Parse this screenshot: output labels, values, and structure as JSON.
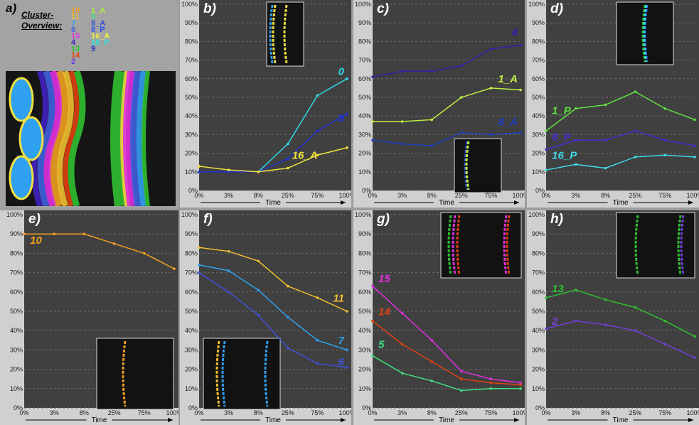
{
  "overview": {
    "letter": "a)",
    "title": "Cluster-\nOverview:",
    "clusters": [
      {
        "label": "10",
        "color": "#f0a020"
      },
      {
        "label": "11",
        "color": "#f0c030"
      },
      {
        "label": "7",
        "color": "#30a0f0"
      },
      {
        "label": "6",
        "color": "#4060e0"
      },
      {
        "label": "15",
        "color": "#e030e0"
      },
      {
        "label": "4",
        "color": "#4020c0"
      },
      {
        "label": "13",
        "color": "#30c030"
      },
      {
        "label": "14",
        "color": "#e04010"
      },
      {
        "label": "2",
        "color": "#6040e0"
      },
      {
        "label": "1_A",
        "color": "#b0f040"
      },
      {
        "label": "5",
        "color": "#40e080"
      },
      {
        "label": "8_A",
        "color": "#3050d0"
      },
      {
        "label": "8_P",
        "color": "#3050f0"
      },
      {
        "label": "16_A",
        "color": "#f0f040"
      },
      {
        "label": "16_P",
        "color": "#30e0e0"
      },
      {
        "label": "9",
        "color": "#2030c0"
      }
    ]
  },
  "axis": {
    "xlabel": "Time"
  },
  "chart_data": [
    {
      "panel": "b",
      "letter": "b)",
      "type": "line",
      "x": [
        "0%",
        "3%",
        "8%",
        "25%",
        "75%",
        "100%"
      ],
      "yticks": [
        "0%",
        "10%",
        "20%",
        "30%",
        "40%",
        "50%",
        "60%",
        "70%",
        "80%",
        "90%",
        "100%"
      ],
      "xlabel": "Time",
      "ylim": [
        0,
        100
      ],
      "series": [
        {
          "name": "0",
          "color": "#30d8e8",
          "values": [
            10,
            10,
            10,
            25,
            51,
            60
          ],
          "label_pos": [
            100,
            62
          ]
        },
        {
          "name": "9",
          "color": "#2030d0",
          "values": [
            10,
            10,
            10,
            17,
            32,
            41
          ],
          "label_pos": [
            100,
            37
          ]
        },
        {
          "name": "16_A",
          "color": "#f0e040",
          "values": [
            13,
            11,
            10,
            12,
            19,
            23
          ],
          "label_pos": [
            82,
            17
          ]
        }
      ]
    },
    {
      "panel": "c",
      "letter": "c)",
      "type": "line",
      "x": [
        "0%",
        "3%",
        "8%",
        "25%",
        "75%",
        "100%"
      ],
      "yticks": [
        "0%",
        "10%",
        "20%",
        "30%",
        "40%",
        "50%",
        "60%",
        "70%",
        "80%",
        "90%",
        "100%"
      ],
      "xlabel": "Time",
      "ylim": [
        0,
        100
      ],
      "series": [
        {
          "name": "4",
          "color": "#3020b0",
          "values": [
            61,
            64,
            64,
            67,
            76,
            78
          ],
          "label_pos": [
            100,
            83
          ]
        },
        {
          "name": "1_A",
          "color": "#c0f040",
          "values": [
            37,
            37,
            38,
            50,
            55,
            54
          ],
          "label_pos": [
            100,
            58
          ]
        },
        {
          "name": "8_A",
          "color": "#2040c0",
          "values": [
            27,
            25,
            24,
            31,
            30,
            31
          ],
          "label_pos": [
            100,
            35
          ]
        }
      ]
    },
    {
      "panel": "d",
      "letter": "d)",
      "type": "line",
      "x": [
        "0%",
        "3%",
        "8%",
        "25%",
        "75%",
        "100%"
      ],
      "yticks": [
        "0%",
        "10%",
        "20%",
        "30%",
        "40%",
        "50%",
        "60%",
        "70%",
        "80%",
        "90%",
        "100%"
      ],
      "xlabel": "Time",
      "ylim": [
        0,
        100
      ],
      "series": [
        {
          "name": "1_P",
          "color": "#60e040",
          "values": [
            32,
            44,
            46,
            53,
            44,
            38
          ],
          "label_pos": [
            2,
            41
          ]
        },
        {
          "name": "8_P",
          "color": "#4030d0",
          "values": [
            22,
            27,
            27,
            32,
            27,
            24
          ],
          "label_pos": [
            2,
            27
          ]
        },
        {
          "name": "16_P",
          "color": "#40d8e8",
          "values": [
            11,
            14,
            12,
            18,
            19,
            18
          ],
          "label_pos": [
            2,
            17
          ]
        }
      ]
    },
    {
      "panel": "e",
      "letter": "e)",
      "type": "line",
      "x": [
        "0%",
        "3%",
        "8%",
        "25%",
        "75%",
        "100%"
      ],
      "yticks": [
        "0%",
        "10%",
        "20%",
        "30%",
        "40%",
        "50%",
        "60%",
        "70%",
        "80%",
        "90%",
        "100%"
      ],
      "xlabel": "Time",
      "ylim": [
        0,
        100
      ],
      "series": [
        {
          "name": "10",
          "color": "#f0a020",
          "values": [
            90,
            90,
            90,
            85,
            80,
            72
          ],
          "label_pos": [
            2,
            85
          ]
        }
      ]
    },
    {
      "panel": "f",
      "letter": "f)",
      "type": "line",
      "x": [
        "0%",
        "3%",
        "8%",
        "25%",
        "75%",
        "100%"
      ],
      "yticks": [
        "0%",
        "10%",
        "20%",
        "30%",
        "40%",
        "50%",
        "60%",
        "70%",
        "80%",
        "90%",
        "100%"
      ],
      "xlabel": "Time",
      "ylim": [
        0,
        100
      ],
      "series": [
        {
          "name": "11",
          "color": "#f0c030",
          "values": [
            83,
            81,
            76,
            63,
            57,
            50
          ],
          "label_pos": [
            100,
            55
          ]
        },
        {
          "name": "7",
          "color": "#30a0f0",
          "values": [
            74,
            71,
            61,
            47,
            35,
            30
          ],
          "label_pos": [
            100,
            33
          ]
        },
        {
          "name": "6",
          "color": "#4050d8",
          "values": [
            70,
            60,
            48,
            31,
            23,
            21
          ],
          "label_pos": [
            100,
            22
          ]
        }
      ]
    },
    {
      "panel": "g",
      "letter": "g)",
      "type": "line",
      "x": [
        "0%",
        "3%",
        "8%",
        "25%",
        "75%",
        "100%"
      ],
      "yticks": [
        "0%",
        "10%",
        "20%",
        "30%",
        "40%",
        "50%",
        "60%",
        "70%",
        "80%",
        "90%",
        "100%"
      ],
      "xlabel": "Time",
      "ylim": [
        0,
        100
      ],
      "series": [
        {
          "name": "15",
          "color": "#e030e0",
          "values": [
            63,
            49,
            35,
            19,
            15,
            13
          ],
          "label_pos": [
            2,
            65
          ]
        },
        {
          "name": "14",
          "color": "#e04010",
          "values": [
            45,
            33,
            24,
            15,
            13,
            12
          ],
          "label_pos": [
            2,
            48
          ]
        },
        {
          "name": "5",
          "color": "#40e080",
          "values": [
            27,
            18,
            14,
            9,
            10,
            10
          ],
          "label_pos": [
            2,
            31
          ]
        }
      ]
    },
    {
      "panel": "h",
      "letter": "h)",
      "type": "line",
      "x": [
        "0%",
        "3%",
        "8%",
        "25%",
        "75%",
        "100%"
      ],
      "yticks": [
        "0%",
        "10%",
        "20%",
        "30%",
        "40%",
        "50%",
        "60%",
        "70%",
        "80%",
        "90%",
        "100%"
      ],
      "xlabel": "Time",
      "ylim": [
        0,
        100
      ],
      "series": [
        {
          "name": "13",
          "color": "#30c030",
          "values": [
            57,
            61,
            56,
            52,
            45,
            37
          ],
          "label_pos": [
            2,
            60
          ]
        },
        {
          "name": "2",
          "color": "#7040d8",
          "values": [
            41,
            45,
            43,
            40,
            33,
            26
          ],
          "label_pos": [
            2,
            43
          ]
        }
      ]
    }
  ]
}
